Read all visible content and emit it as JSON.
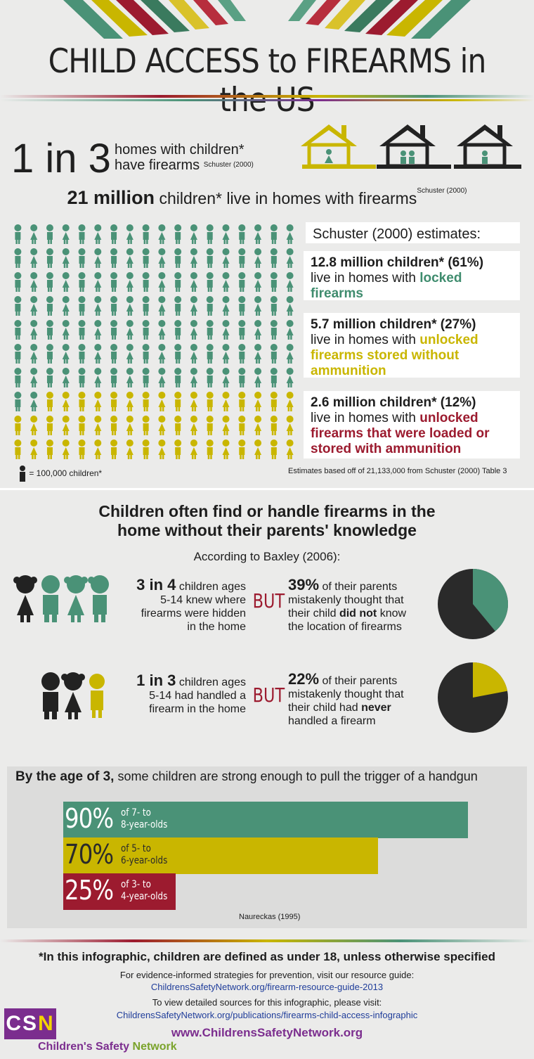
{
  "title": "CHILD ACCESS to FIREARMS in the US",
  "colors": {
    "green": "#4a9277",
    "yellow": "#c9b600",
    "red": "#9c1b2f",
    "dark": "#2a2a2a",
    "purple": "#7b2d8e"
  },
  "stat1": {
    "big": "1 in 3",
    "line1": "homes with children*",
    "line2": "have firearms",
    "source": "Schuster (2000)"
  },
  "stat2": {
    "bold": "21 million",
    "text": "children* live in homes with firearms",
    "source": "Schuster (2000)"
  },
  "icon_grid": {
    "green": 128,
    "yellow": 58,
    "red": 26,
    "per_row": 18
  },
  "schuster": {
    "heading": "Schuster (2000) estimates:",
    "card1": {
      "bold": "12.8 million children* (61%)",
      "text": "live in homes with",
      "accent": "locked firearms"
    },
    "card2": {
      "bold": "5.7 million children* (27%)",
      "text": "live in homes with",
      "accent": "unlocked firearms stored without ammunition"
    },
    "card3": {
      "bold": "2.6 million children* (12%)",
      "text": "live in homes with",
      "accent": "unlocked firearms that were loaded or stored with ammunition"
    }
  },
  "legend": "= 100,000 children*",
  "estimate_note": "Estimates based off of 21,133,000 from Schuster (2000) Table 3",
  "section2": {
    "title_line1": "Children often find or handle firearms in the",
    "title_line2": "home without their parents' knowledge",
    "source": "According to Baxley (2006):",
    "row1": {
      "big": "3 in 4",
      "text1": "children ages",
      "text2": "5-14 knew where",
      "text3": "firearms were hidden",
      "text4": "in the home",
      "but": "BUT",
      "pct": "39%",
      "r1": "of their parents",
      "r2": "mistakenly thought that",
      "r3a": "their child",
      "r3b": "did not",
      "r3c": "know",
      "r4": "the location of firearms",
      "pie_fraction": 0.39
    },
    "row2": {
      "big": "1 in 3",
      "text1": "children ages",
      "text2": "5-14 had handled a",
      "text3": "firearm in the home",
      "but": "BUT",
      "pct": "22%",
      "r1": "of their parents",
      "r2": "mistakenly thought that",
      "r3a": "their child had",
      "r3b": "never",
      "r4": "handled a firearm",
      "pie_fraction": 0.22
    }
  },
  "section3": {
    "title_bold": "By the age of 3,",
    "title_rest": "some children are strong enough to pull the trigger of a handgun",
    "bars": [
      {
        "pct": "90%",
        "label1": "of 7- to",
        "label2": "8-year-olds",
        "value": 90
      },
      {
        "pct": "70%",
        "label1": "of 5- to",
        "label2": "6-year-olds",
        "value": 70
      },
      {
        "pct": "25%",
        "label1": "of 3- to",
        "label2": "4-year-olds",
        "value": 25
      }
    ],
    "source": "Naureckas (1995)"
  },
  "footer": {
    "definition": "*In this infographic, children are defined as under 18, unless otherwise specified",
    "guide_text": "For evidence-informed strategies for prevention, visit our resource guide:",
    "guide_link": "ChildrensSafetyNetwork.org/firearm-resource-guide-2013",
    "sources_text": "To view detailed sources for this infographic, please visit:",
    "sources_link": "ChildrensSafetyNetwork.org/publications/firearms-child-access-infographic",
    "website": "www.ChildrensSafetyNetwork.org",
    "logo_letters": "CS",
    "logo_n": "N",
    "org_name": "Children's Safety",
    "org_name2": "Network"
  }
}
